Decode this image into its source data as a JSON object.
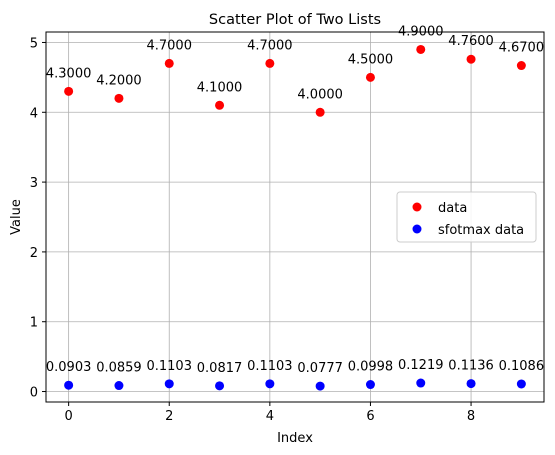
{
  "chart_data": {
    "type": "scatter",
    "title": "Scatter Plot of Two Lists",
    "xlabel": "Index",
    "ylabel": "Value",
    "xlim": [
      -0.45,
      9.45
    ],
    "ylim": [
      -0.15,
      5.15
    ],
    "xticks": [
      0,
      2,
      4,
      6,
      8
    ],
    "yticks": [
      0,
      1,
      2,
      3,
      4,
      5
    ],
    "grid": true,
    "legend_position": "center-right",
    "x": [
      0,
      1,
      2,
      3,
      4,
      5,
      6,
      7,
      8,
      9
    ],
    "series": [
      {
        "name": "data",
        "color": "#ff0000",
        "values": [
          4.3,
          4.2,
          4.7,
          4.1,
          4.7,
          4.0,
          4.5,
          4.9,
          4.76,
          4.67
        ],
        "labels": [
          "4.3000",
          "4.2000",
          "4.7000",
          "4.1000",
          "4.7000",
          "4.0000",
          "4.5000",
          "4.9000",
          "4.7600",
          "4.6700"
        ]
      },
      {
        "name": "sfotmax data",
        "color": "#0000ff",
        "values": [
          0.0903,
          0.0859,
          0.1103,
          0.0817,
          0.1103,
          0.0777,
          0.0998,
          0.1219,
          0.1136,
          0.1086
        ],
        "labels": [
          "0.0903",
          "0.0859",
          "0.1103",
          "0.0817",
          "0.1103",
          "0.0777",
          "0.0998",
          "0.1219",
          "0.1136",
          "0.1086"
        ]
      }
    ]
  }
}
